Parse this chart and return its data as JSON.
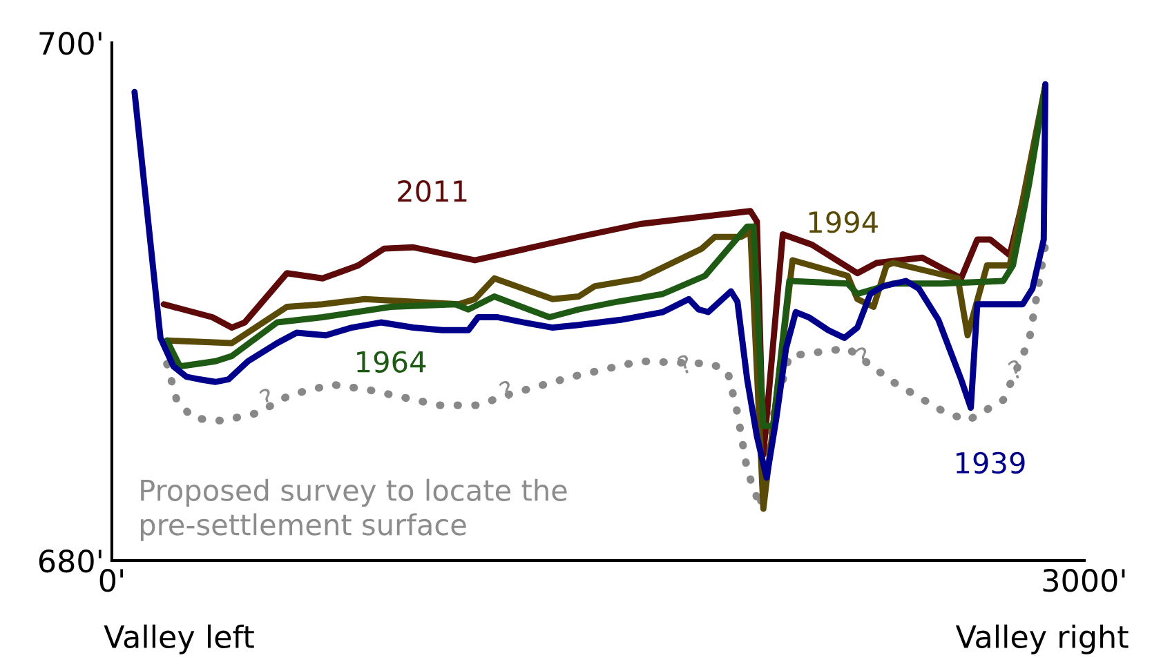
{
  "chart_data": {
    "type": "line",
    "xlim": [
      0,
      3000
    ],
    "ylim": [
      680,
      700
    ],
    "xticks": [
      {
        "value": 0,
        "label": "0'"
      },
      {
        "value": 3000,
        "label": "3000'"
      }
    ],
    "yticks": [
      {
        "value": 680,
        "label": "680'"
      },
      {
        "value": 700,
        "label": "700'"
      }
    ],
    "grid": false,
    "legend": false,
    "marker": "none",
    "series": [
      {
        "name": "2011",
        "color": "#5e0a0a",
        "line_style": "solid",
        "x": [
          160,
          310,
          370,
          410,
          540,
          650,
          760,
          840,
          930,
          1120,
          1440,
          1630,
          1970,
          1990,
          2010,
          2070,
          2160,
          2300,
          2360,
          2500,
          2620,
          2670,
          2710,
          2770,
          2830,
          2880
        ],
        "values": [
          689.9,
          689.4,
          689.0,
          689.2,
          691.1,
          690.9,
          691.4,
          692.05,
          692.1,
          691.6,
          692.5,
          693.0,
          693.5,
          693.1,
          684.1,
          692.6,
          692.2,
          691.1,
          691.5,
          691.7,
          690.9,
          692.4,
          692.4,
          691.8,
          694.9,
          698.35
        ]
      },
      {
        "name": "1994",
        "color": "#5a4a08",
        "line_style": "solid",
        "x": [
          170,
          370,
          540,
          650,
          780,
          1070,
          1120,
          1180,
          1360,
          1440,
          1490,
          1630,
          1820,
          1860,
          1940,
          1970,
          2010,
          2100,
          2270,
          2300,
          2350,
          2390,
          2410,
          2610,
          2640,
          2700,
          2770,
          2880
        ],
        "values": [
          688.5,
          688.4,
          689.8,
          689.9,
          690.1,
          689.9,
          690.1,
          690.9,
          690.1,
          690.2,
          690.6,
          690.9,
          692.05,
          692.5,
          692.5,
          692.7,
          682.0,
          691.6,
          691.0,
          690.1,
          689.8,
          691.4,
          691.5,
          690.9,
          688.7,
          691.4,
          691.4,
          698.35
        ]
      },
      {
        "name": "1964",
        "color": "#1e5a14",
        "line_style": "solid",
        "x": [
          170,
          210,
          320,
          370,
          510,
          650,
          860,
          1060,
          1100,
          1180,
          1350,
          1440,
          1560,
          1700,
          1830,
          1960,
          1980,
          2010,
          2040,
          2090,
          2270,
          2300,
          2410,
          2560,
          2750,
          2780,
          2830,
          2880
        ],
        "values": [
          688.5,
          687.5,
          687.7,
          687.9,
          689.2,
          689.4,
          689.8,
          689.9,
          689.7,
          690.2,
          689.4,
          689.7,
          690.0,
          690.3,
          691.0,
          692.9,
          692.9,
          685.2,
          685.2,
          690.8,
          690.7,
          690.3,
          690.7,
          690.7,
          690.8,
          691.4,
          694.56,
          698.35
        ]
      },
      {
        "name": "1939",
        "color": "#00008b",
        "line_style": "solid",
        "x": [
          70,
          150,
          190,
          230,
          270,
          320,
          360,
          420,
          510,
          570,
          660,
          740,
          830,
          930,
          1020,
          1100,
          1130,
          1190,
          1270,
          1360,
          1440,
          1570,
          1700,
          1780,
          1810,
          1840,
          1910,
          1930,
          1960,
          1990,
          2020,
          2050,
          2080,
          2110,
          2150,
          2210,
          2260,
          2300,
          2340,
          2380,
          2450,
          2490,
          2550,
          2620,
          2650,
          2670,
          2700,
          2810,
          2840,
          2875,
          2880
        ],
        "values": [
          698.1,
          688.6,
          687.5,
          687.1,
          687.0,
          686.9,
          687.0,
          687.7,
          688.4,
          688.8,
          688.7,
          689.0,
          689.2,
          689.0,
          688.9,
          688.9,
          689.4,
          689.4,
          689.2,
          689.0,
          689.1,
          689.3,
          689.6,
          690.1,
          689.7,
          689.6,
          690.4,
          690.0,
          687.0,
          684.8,
          683.2,
          685.5,
          688.2,
          689.6,
          689.4,
          688.9,
          688.6,
          689.0,
          690.3,
          690.6,
          690.8,
          690.5,
          689.3,
          687.0,
          685.9,
          689.9,
          689.9,
          689.9,
          690.5,
          692.4,
          698.4
        ]
      },
      {
        "color": "#888888",
        "line_style": "dotted",
        "x": [
          170,
          200,
          250,
          340,
          450,
          550,
          680,
          790,
          1010,
          1130,
          1220,
          1420,
          1630,
          1850,
          1900,
          1930,
          1960,
          2000,
          2030,
          2090,
          2270,
          2410,
          2560,
          2640,
          2750,
          2830,
          2880
        ],
        "values": [
          687.6,
          686.2,
          685.5,
          685.4,
          685.7,
          686.4,
          686.8,
          686.6,
          686.0,
          686.0,
          686.4,
          687.1,
          687.7,
          687.6,
          687.3,
          685.7,
          683.5,
          682.08,
          685.1,
          687.9,
          688.2,
          686.9,
          685.8,
          685.4,
          686.2,
          688.5,
          692.2
        ]
      }
    ],
    "annotations": [
      "Valley left",
      "Valley right",
      "Proposed survey to locate the\npre-settlement surface",
      {
        "text": "?",
        "x": 480,
        "y": 686.2
      },
      {
        "text": "?",
        "x": 1220,
        "y": 686.5
      },
      {
        "text": "?",
        "x": 1770,
        "y": 687.5
      },
      {
        "text": "?",
        "x": 2320,
        "y": 687.8
      },
      {
        "text": "?",
        "x": 2790,
        "y": 687.3
      }
    ]
  }
}
